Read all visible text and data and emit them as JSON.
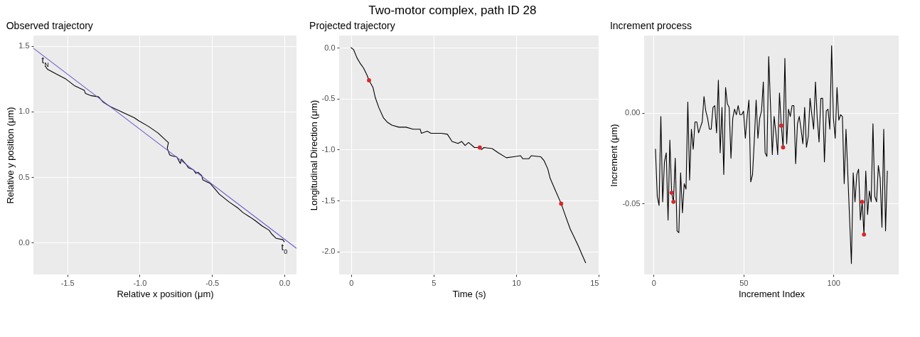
{
  "chart_data": [
    {
      "type": "line",
      "title": "Observed trajectory",
      "xlabel": "Relative x position (μm)",
      "ylabel": "Relative y position (μm)",
      "xlim": [
        -1.734,
        0.084
      ],
      "ylim": [
        -0.242,
        1.58
      ],
      "xticks": [
        -1.5,
        {
          "value": -1,
          "label": "-1.0"
        },
        -0.5,
        {
          "value": 0,
          "label": "0.0"
        }
      ],
      "yticks": [
        {
          "value": 0,
          "label": "0.0"
        },
        0.5,
        {
          "value": 1,
          "label": "1.0"
        },
        1.5
      ],
      "grid": true,
      "series": [
        {
          "color": "#000000",
          "x": [
            0.0,
            -0.01,
            -0.056,
            -0.088,
            -0.105,
            -0.154,
            -0.203,
            -0.236,
            -0.285,
            -0.318,
            -0.383,
            -0.449,
            -0.481,
            -0.514,
            -0.531,
            -0.563,
            -0.571,
            -0.596,
            -0.612,
            -0.629,
            -0.662,
            -0.678,
            -0.711,
            -0.719,
            -0.743,
            -0.776,
            -0.793,
            -0.809,
            -0.801,
            -0.817,
            -0.874,
            -0.94,
            -1.005,
            -1.038,
            -1.104,
            -1.202,
            -1.251,
            -1.284,
            -1.333,
            -1.374,
            -1.383,
            -1.448,
            -1.513,
            -1.579,
            -1.636,
            -1.652
          ],
          "values": [
            0.007,
            0.023,
            0.033,
            0.067,
            0.095,
            0.128,
            0.17,
            0.195,
            0.229,
            0.262,
            0.312,
            0.37,
            0.412,
            0.454,
            0.462,
            0.479,
            0.512,
            0.537,
            0.529,
            0.557,
            0.571,
            0.596,
            0.637,
            0.604,
            0.654,
            0.662,
            0.671,
            0.721,
            0.763,
            0.779,
            0.838,
            0.888,
            0.929,
            0.954,
            0.988,
            1.038,
            1.071,
            1.113,
            1.121,
            1.138,
            1.163,
            1.196,
            1.251,
            1.288,
            1.322,
            1.347
          ]
        },
        {
          "color": "#6a5acd",
          "x": [
            -1.734,
            0.084
          ],
          "values": [
            1.483,
            -0.043
          ]
        }
      ],
      "annotations": [
        "Two-motor complex, path ID 28",
        {
          "text": "t$_{N}$",
          "x": -1.652,
          "y": 1.347
        },
        {
          "text": "t$_{0}$",
          "x": 0.0,
          "y": 0.007
        }
      ]
    },
    {
      "type": "line",
      "title": "Projected trajectory",
      "xlabel": "Time (s)",
      "ylabel": "Longitudinal  Direction (μm)",
      "xlim": [
        -0.72,
        15.0
      ],
      "ylim": [
        -2.225,
        0.119
      ],
      "xticks": [
        0,
        5,
        10,
        15
      ],
      "yticks": [
        {
          "value": 0,
          "label": "0.0"
        },
        -0.5,
        {
          "value": -1,
          "label": "-1.0"
        },
        -1.5,
        {
          "value": -2,
          "label": "-2.0"
        }
      ],
      "grid": true,
      "series": [
        {
          "color": "#000000",
          "x": [
            0,
            0.16,
            0.36,
            0.54,
            0.76,
            0.97,
            1.09,
            1.33,
            1.47,
            1.69,
            1.97,
            2.19,
            2.47,
            2.9,
            3.33,
            3.76,
            4.19,
            4.26,
            4.62,
            4.84,
            5.48,
            5.84,
            6.12,
            6.48,
            6.7,
            6.91,
            7.12,
            7.48,
            7.8,
            7.91,
            8.05,
            8.55,
            8.91,
            9.41,
            9.84,
            10.27,
            10.41,
            10.77,
            10.92,
            11.49,
            11.7,
            11.92,
            12.06,
            12.35,
            12.73,
            12.99,
            13.28,
            13.49,
            13.78,
            13.99,
            14.21
          ],
          "values": [
            0.0,
            -0.02,
            -0.1,
            -0.15,
            -0.2,
            -0.27,
            -0.32,
            -0.39,
            -0.49,
            -0.59,
            -0.69,
            -0.73,
            -0.76,
            -0.78,
            -0.78,
            -0.8,
            -0.8,
            -0.84,
            -0.82,
            -0.84,
            -0.84,
            -0.85,
            -0.92,
            -0.94,
            -0.92,
            -0.96,
            -0.93,
            -0.98,
            -0.98,
            -1.0,
            -0.98,
            -0.99,
            -1.03,
            -1.08,
            -1.07,
            -1.06,
            -1.09,
            -1.09,
            -1.06,
            -1.07,
            -1.11,
            -1.19,
            -1.28,
            -1.39,
            -1.53,
            -1.65,
            -1.78,
            -1.85,
            -1.95,
            -2.03,
            -2.11
          ]
        },
        {
          "type": "scatter",
          "color": "#d62728",
          "x": [
            1.09,
            7.8,
            12.73
          ],
          "values": [
            -0.32,
            -0.98,
            -1.53
          ]
        }
      ]
    },
    {
      "type": "line",
      "title": "Increment process",
      "xlabel": "Increment Index",
      "ylabel": "Increment (μm)",
      "xlim": [
        -5.3,
        136.3
      ],
      "ylim": [
        -0.089,
        0.0426
      ],
      "xticks": [
        0,
        50,
        100
      ],
      "yticks": [
        {
          "value": -0.05,
          "label": "-0.05"
        },
        {
          "value": 0,
          "label": "0.00"
        }
      ],
      "grid": true,
      "series": [
        {
          "color": "#000000",
          "x": [
            1,
            2,
            3,
            4,
            5,
            6,
            7,
            8,
            9,
            10,
            11,
            12,
            13,
            14,
            15,
            16,
            17,
            18,
            19,
            20,
            21,
            22,
            23,
            24,
            25,
            26,
            27,
            28,
            29,
            30,
            31,
            32,
            33,
            34,
            35,
            36,
            37,
            38,
            39,
            40,
            41,
            42,
            43,
            44,
            45,
            46,
            47,
            48,
            49,
            50,
            51,
            52,
            53,
            54,
            55,
            56,
            57,
            58,
            59,
            60,
            61,
            62,
            63,
            64,
            66,
            67,
            68,
            69,
            70,
            71,
            72,
            73,
            74,
            75,
            76,
            77,
            78,
            79,
            80,
            81,
            82,
            83,
            84,
            85,
            86,
            87,
            88,
            89,
            90,
            91,
            92,
            93,
            94,
            95,
            96,
            97,
            98,
            99,
            100,
            101,
            102,
            103,
            104,
            105,
            106,
            107,
            110,
            111,
            112,
            113,
            114,
            115,
            116,
            117,
            118,
            119,
            120,
            121,
            122,
            123,
            124,
            125,
            126,
            127,
            128,
            129,
            130
          ],
          "values": [
            -0.02,
            -0.046,
            -0.051,
            -0.002,
            -0.049,
            -0.027,
            -0.022,
            -0.059,
            -0.015,
            -0.044,
            -0.049,
            -0.025,
            -0.065,
            -0.066,
            -0.033,
            -0.055,
            -0.039,
            -0.042,
            0.006,
            -0.037,
            -0.009,
            -0.02,
            -0.005,
            -0.005,
            -0.011,
            -0.008,
            -0.005,
            0.009,
            0.001,
            -0.003,
            -0.009,
            -0.009,
            0.003,
            0.004,
            -0.011,
            0.018,
            -0.022,
            0.003,
            -0.034,
            0.014,
            0.005,
            0.003,
            -0.025,
            -0.003,
            0.002,
            -0.001,
            0.004,
            -0.001,
            -0.001,
            0.001,
            -0.014,
            -0.002,
            0.007,
            -0.038,
            -0.034,
            -0.015,
            0.007,
            -0.014,
            -0.003,
            0.001,
            0.017,
            -0.022,
            -0.024,
            0.031,
            -0.023,
            -0.002,
            -0.011,
            -0.023,
            0.011,
            -0.007,
            -0.019,
            0.03,
            -0.017,
            0.002,
            -0.002,
            0.004,
            0.004,
            -0.028,
            -0.006,
            -0.002,
            -0.009,
            -0.017,
            0.003,
            -0.019,
            -0.013,
            0.008,
            -0.001,
            -0.009,
            0.017,
            -0.003,
            -0.016,
            0.008,
            0.008,
            -0.027,
            0.001,
            0.002,
            -0.009,
            0.037,
            -0.003,
            -0.014,
            0.014,
            -0.004,
            -0.001,
            -0.002,
            -0.039,
            -0.009,
            -0.083,
            -0.033,
            -0.049,
            -0.034,
            -0.031,
            -0.059,
            -0.049,
            -0.067,
            -0.032,
            -0.056,
            -0.043,
            -0.049,
            -0.006,
            -0.046,
            -0.049,
            -0.029,
            -0.036,
            -0.063,
            -0.009,
            -0.065,
            -0.032
          ]
        },
        {
          "type": "scatter",
          "color": "#d62728",
          "x": [
            10,
            11,
            71,
            72,
            116,
            117
          ],
          "values": [
            -0.044,
            -0.049,
            -0.007,
            -0.019,
            -0.049,
            -0.067
          ]
        }
      ]
    }
  ]
}
